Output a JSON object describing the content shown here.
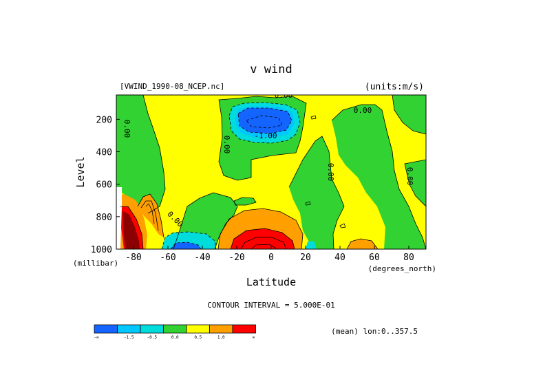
{
  "chart_data": {
    "type": "heatmap",
    "title": "v wind",
    "file_label": "[VWIND_1990-08_NCEP.nc]",
    "units_label": "(units:m/s)",
    "xlabel": "Latitude",
    "x_units": "(degrees_north)",
    "ylabel": "Level",
    "y_units": "(millibar)",
    "xlim": [
      -90,
      90
    ],
    "ylim": [
      1000,
      50
    ],
    "x_ticks": [
      -80,
      -60,
      -40,
      -20,
      0,
      20,
      40,
      60,
      80
    ],
    "y_ticks": [
      200,
      400,
      600,
      800,
      1000
    ],
    "contour_interval_text": "CONTOUR INTERVAL = 5.000E-01",
    "mean_text": "(mean) lon:0..357.5",
    "contour_labels": [
      "0.00",
      "0.00",
      "0.00",
      "0.00",
      "0.00",
      "0.00",
      "0.00",
      "-1.00"
    ],
    "colorbar": {
      "colors": [
        "#1464ff",
        "#00c8ff",
        "#00dcdc",
        "#32d232",
        "#ffff00",
        "#ffa000",
        "#ff0000"
      ],
      "labels": [
        "-∞",
        "-1.5",
        "-0.5",
        "0.0",
        "0.5",
        "1.0",
        "∞"
      ]
    },
    "features": [
      {
        "name": "upper-tropo-negative-core",
        "lat": -5,
        "level": 170,
        "value": -1.5
      },
      {
        "name": "lower-tropo-positive-core",
        "lat": -8,
        "level": 950,
        "value": 2.0
      },
      {
        "name": "antarctic-positive-core",
        "lat": -85,
        "level": 900,
        "value": 2.5
      },
      {
        "name": "southern-negative-low",
        "lat": -55,
        "level": 980,
        "value": -1.5
      },
      {
        "name": "northern-positive-low",
        "lat": 55,
        "level": 980,
        "value": 1.0
      }
    ]
  }
}
